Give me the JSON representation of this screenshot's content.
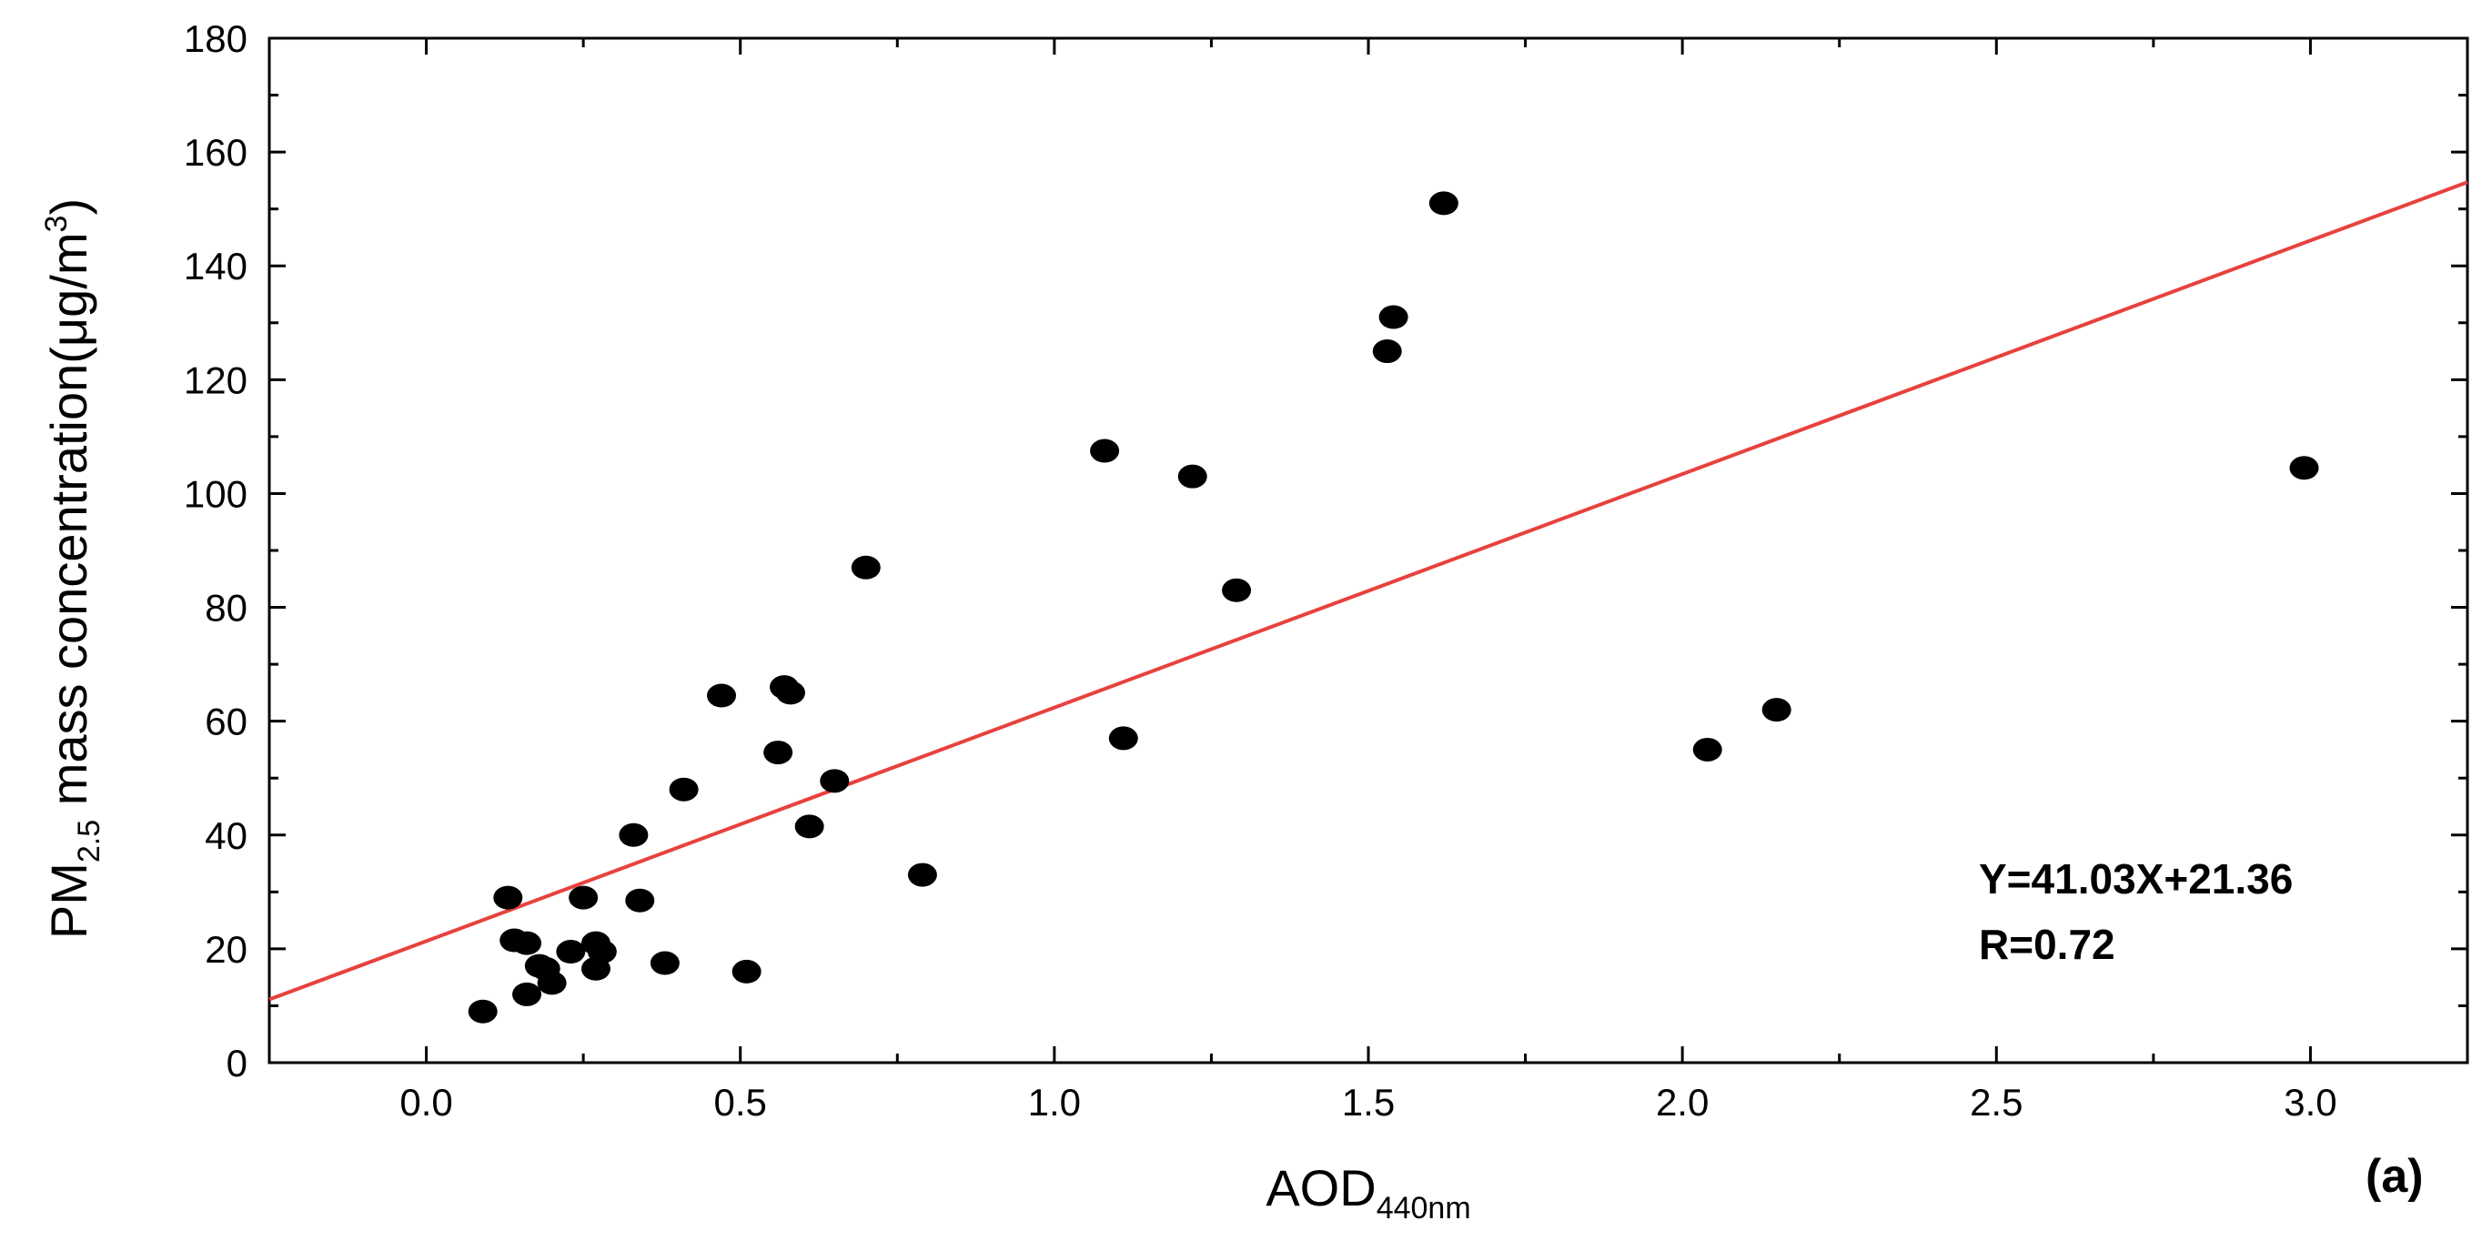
{
  "chart_data": {
    "type": "scatter",
    "xlabel": {
      "main": "AOD",
      "sub": "440nm"
    },
    "ylabel": {
      "pre": "PM",
      "sub": "2.5",
      "mid": " mass concentration(μg/m",
      "sup": "3",
      "post": ")"
    },
    "xlim": [
      -0.25,
      3.25
    ],
    "ylim": [
      0,
      180
    ],
    "xticks": [
      "0.0",
      "0.5",
      "1.0",
      "1.5",
      "2.0",
      "2.5",
      "3.0"
    ],
    "yticks": [
      "0",
      "20",
      "40",
      "60",
      "80",
      "100",
      "120",
      "140",
      "160",
      "180"
    ],
    "grid": false,
    "points": [
      [
        0.09,
        9
      ],
      [
        0.13,
        29
      ],
      [
        0.14,
        21.5
      ],
      [
        0.16,
        21
      ],
      [
        0.16,
        12
      ],
      [
        0.18,
        17
      ],
      [
        0.19,
        16.5
      ],
      [
        0.2,
        14
      ],
      [
        0.23,
        19.5
      ],
      [
        0.25,
        29
      ],
      [
        0.27,
        21
      ],
      [
        0.27,
        16.5
      ],
      [
        0.28,
        19.5
      ],
      [
        0.33,
        40
      ],
      [
        0.34,
        28.5
      ],
      [
        0.38,
        17.5
      ],
      [
        0.41,
        48
      ],
      [
        0.47,
        64.5
      ],
      [
        0.51,
        16
      ],
      [
        0.56,
        54.5
      ],
      [
        0.57,
        66
      ],
      [
        0.58,
        65
      ],
      [
        0.61,
        41.5
      ],
      [
        0.65,
        49.5
      ],
      [
        0.7,
        87
      ],
      [
        0.79,
        33
      ],
      [
        1.08,
        107.5
      ],
      [
        1.11,
        57
      ],
      [
        1.22,
        103
      ],
      [
        1.29,
        83
      ],
      [
        1.53,
        125
      ],
      [
        1.54,
        131
      ],
      [
        1.62,
        151
      ],
      [
        2.04,
        55
      ],
      [
        2.15,
        62
      ],
      [
        2.99,
        104.5
      ]
    ],
    "fit": {
      "slope": 41.03,
      "intercept": 21.36,
      "color": "#e8413d"
    },
    "marker_color": "#000000",
    "annotations": {
      "equation": "Y=41.03X+21.36",
      "r": "R=0.72"
    },
    "panel_label": "(a)"
  }
}
